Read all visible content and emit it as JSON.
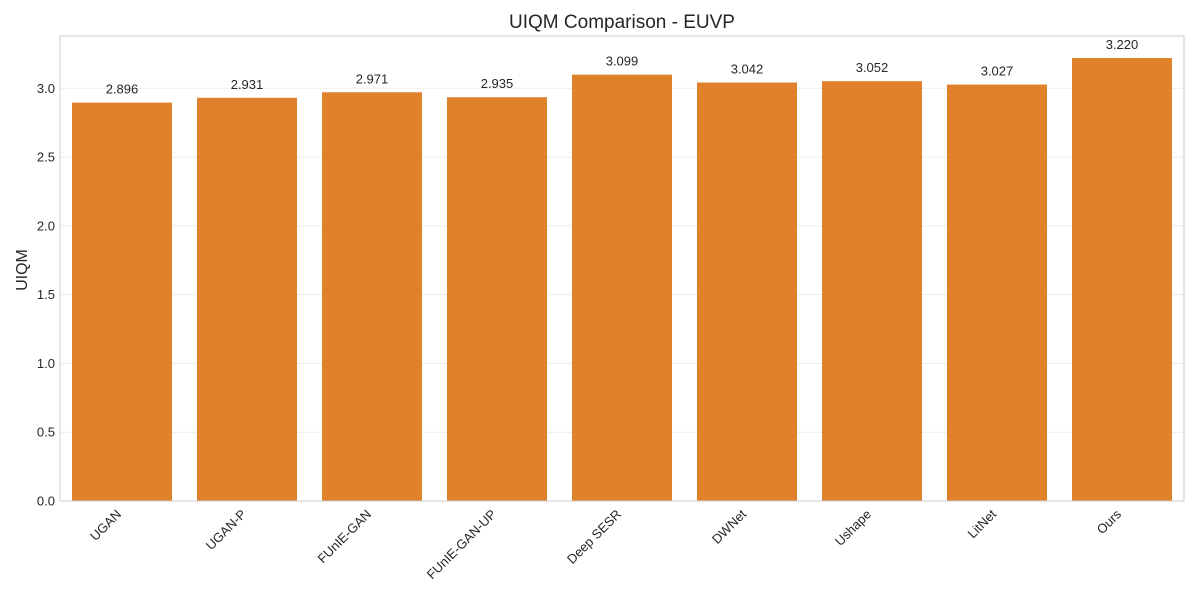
{
  "chart_data": {
    "type": "bar",
    "title": "UIQM Comparison - EUVP",
    "xlabel": "",
    "ylabel": "UIQM",
    "categories": [
      "UGAN",
      "UGAN-P",
      "FUnIE-GAN",
      "FUnIE-GAN-UP",
      "Deep SESR",
      "DWNet",
      "Ushape",
      "LitNet",
      "Ours"
    ],
    "values": [
      2.896,
      2.931,
      2.971,
      2.935,
      3.099,
      3.042,
      3.052,
      3.027,
      3.22
    ],
    "value_labels": [
      "2.896",
      "2.931",
      "2.971",
      "2.935",
      "3.099",
      "3.042",
      "3.052",
      "3.027",
      "3.220"
    ],
    "ylim": [
      0,
      3.38
    ],
    "yticks": [
      "0.0",
      "0.5",
      "1.0",
      "1.5",
      "2.0",
      "2.5",
      "3.0"
    ],
    "grid": true,
    "bar_color": "#e0812c",
    "grid_color": "#ebebeb",
    "frame_color": "#cccccc"
  }
}
